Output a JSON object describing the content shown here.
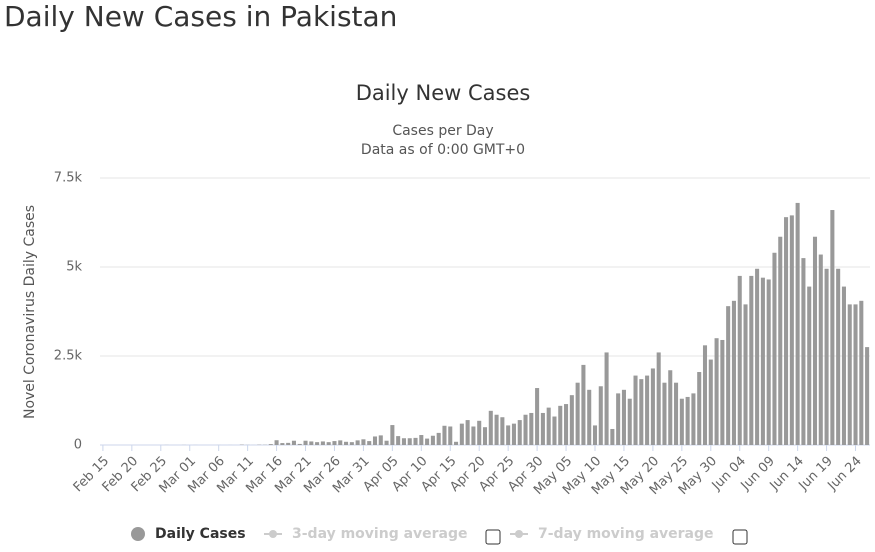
{
  "page_title": "Daily New Cases in Pakistan",
  "chart_data": {
    "type": "bar",
    "title": "Daily New Cases",
    "subtitle": [
      "Cases per Day",
      "Data as of 0:00 GMT+0"
    ],
    "y_label": "Novel Coronavirus Daily Cases",
    "categories": [
      "Feb 15",
      null,
      null,
      null,
      null,
      "Feb 20",
      null,
      null,
      null,
      null,
      "Feb 25",
      null,
      null,
      null,
      null,
      "Mar 01",
      null,
      null,
      null,
      null,
      "Mar 06",
      null,
      null,
      null,
      null,
      "Mar 11",
      null,
      null,
      null,
      null,
      "Mar 16",
      null,
      null,
      null,
      null,
      "Mar 21",
      null,
      null,
      null,
      null,
      "Mar 26",
      null,
      null,
      null,
      null,
      "Mar 31",
      null,
      null,
      null,
      null,
      "Apr 05",
      null,
      null,
      null,
      null,
      "Apr 10",
      null,
      null,
      null,
      null,
      "Apr 15",
      null,
      null,
      null,
      null,
      "Apr 20",
      null,
      null,
      null,
      null,
      "Apr 25",
      null,
      null,
      null,
      null,
      "Apr 30",
      null,
      null,
      null,
      null,
      "May 05",
      null,
      null,
      null,
      null,
      "May 10",
      null,
      null,
      null,
      null,
      "May 15",
      null,
      null,
      null,
      null,
      "May 20",
      null,
      null,
      null,
      null,
      "May 25",
      null,
      null,
      null,
      null,
      "May 30",
      null,
      null,
      null,
      null,
      "Jun 04",
      null,
      null,
      null,
      null,
      "Jun 09",
      null,
      null,
      null,
      null,
      "Jun 14",
      null,
      null,
      null,
      null,
      "Jun 19",
      null,
      null,
      null,
      null,
      "Jun 24",
      null,
      null
    ],
    "series": [
      {
        "name": "Daily Cases",
        "color": "#999999",
        "values": [
          0,
          0,
          0,
          0,
          0,
          0,
          0,
          0,
          0,
          0,
          0,
          2,
          0,
          0,
          2,
          0,
          1,
          0,
          0,
          0,
          1,
          0,
          1,
          0,
          10,
          3,
          1,
          8,
          6,
          25,
          134,
          54,
          60,
          120,
          30,
          120,
          100,
          80,
          100,
          80,
          110,
          130,
          90,
          80,
          130,
          160,
          110,
          240,
          270,
          120,
          560,
          250,
          190,
          190,
          200,
          280,
          180,
          260,
          340,
          540,
          520,
          90,
          600,
          700,
          520,
          680,
          500,
          960,
          850,
          780,
          550,
          600,
          700,
          850,
          900,
          1600,
          900,
          1050,
          800,
          1100,
          1150,
          1400,
          1750,
          2250,
          1550,
          550,
          1650,
          2600,
          450,
          1450,
          1550,
          1300,
          1950,
          1850,
          1950,
          2150,
          2600,
          1750,
          2100,
          1750,
          1300,
          1350,
          1450,
          2050,
          2800,
          2400,
          3000,
          2950,
          3900,
          4050,
          4750,
          3950,
          4750,
          4950,
          4700,
          4650,
          5400,
          5850,
          6400,
          6450,
          6800,
          5250,
          4450,
          5850,
          5350,
          4950,
          6600,
          4950,
          4450,
          3950,
          3950,
          4050,
          2750
        ]
      }
    ],
    "toggles": [
      "3-day moving average",
      "7-day moving average"
    ],
    "ylim": [
      0,
      7500
    ],
    "yticks": [
      0,
      {
        "value": 2500,
        "label": "2.5k"
      },
      {
        "value": 5000,
        "label": "5k"
      },
      {
        "value": 7500,
        "label": "7.5k"
      }
    ],
    "grid": true
  }
}
